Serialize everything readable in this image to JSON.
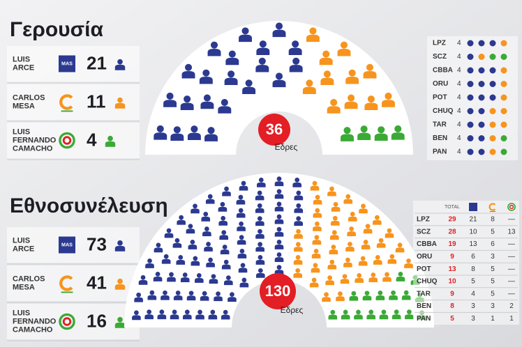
{
  "senate": {
    "title": "Γερουσία",
    "total": 36,
    "seats_label": "Εδρες",
    "candidates": [
      {
        "name": [
          "LUIS",
          "ARCE"
        ],
        "logo": "MAS",
        "seats": 21,
        "color": "#2b3990"
      },
      {
        "name": [
          "CARLOS",
          "MESA"
        ],
        "seats": 11,
        "color": "#f7941d"
      },
      {
        "name": [
          "LUIS",
          "FERNANDO",
          "CAMACHO"
        ],
        "seats": 4,
        "color": "#3aaa35"
      }
    ],
    "departments": [
      {
        "code": "LPZ",
        "total": 4,
        "seats": [
          3,
          1,
          0
        ]
      },
      {
        "code": "SCZ",
        "total": 4,
        "seats": [
          1,
          1,
          2
        ]
      },
      {
        "code": "CBBA",
        "total": 4,
        "seats": [
          3,
          1,
          0
        ]
      },
      {
        "code": "ORU",
        "total": 4,
        "seats": [
          3,
          1,
          0
        ]
      },
      {
        "code": "POT",
        "total": 4,
        "seats": [
          3,
          1,
          0
        ]
      },
      {
        "code": "CHUQ",
        "total": 4,
        "seats": [
          2,
          2,
          0
        ]
      },
      {
        "code": "TAR",
        "total": 4,
        "seats": [
          2,
          2,
          0
        ]
      },
      {
        "code": "BEN",
        "total": 4,
        "seats": [
          2,
          1,
          1
        ]
      },
      {
        "code": "PAN",
        "total": 4,
        "seats": [
          2,
          1,
          1
        ]
      }
    ]
  },
  "assembly": {
    "title": "Εθνοσυνέλευση",
    "total": 130,
    "seats_label": "Εδρες",
    "total_header": "TOTAL",
    "candidates": [
      {
        "name": [
          "LUIS",
          "ARCE"
        ],
        "logo": "MAS",
        "seats": 73,
        "color": "#2b3990"
      },
      {
        "name": [
          "CARLOS",
          "MESA"
        ],
        "seats": 41,
        "color": "#f7941d"
      },
      {
        "name": [
          "LUIS",
          "FERNANDO",
          "CAMACHO"
        ],
        "seats": 16,
        "color": "#3aaa35"
      }
    ],
    "departments": [
      {
        "code": "LPZ",
        "total": 29,
        "seats": [
          21,
          8,
          "—"
        ]
      },
      {
        "code": "SCZ",
        "total": 28,
        "seats": [
          10,
          5,
          13
        ]
      },
      {
        "code": "CBBA",
        "total": 19,
        "seats": [
          13,
          6,
          "—"
        ]
      },
      {
        "code": "ORU",
        "total": 9,
        "seats": [
          6,
          3,
          "—"
        ]
      },
      {
        "code": "POT",
        "total": 13,
        "seats": [
          8,
          5,
          "—"
        ]
      },
      {
        "code": "CHUQ",
        "total": 10,
        "seats": [
          5,
          5,
          "—"
        ]
      },
      {
        "code": "TAR",
        "total": 9,
        "seats": [
          4,
          5,
          "—"
        ]
      },
      {
        "code": "BEN",
        "total": 8,
        "seats": [
          3,
          3,
          2
        ]
      },
      {
        "code": "PAN",
        "total": 5,
        "seats": [
          3,
          1,
          1
        ]
      }
    ]
  }
}
